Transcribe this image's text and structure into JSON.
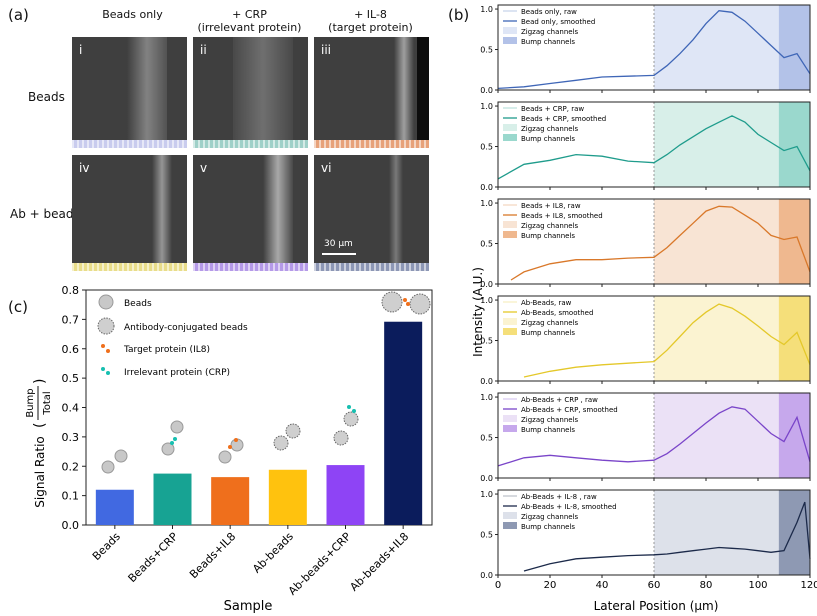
{
  "figure": {
    "panel_a": {
      "letter": "(a)",
      "column_headers": [
        {
          "line1": "Beads only",
          "line2": ""
        },
        {
          "line1": "+ CRP",
          "line2": "(irrelevant protein)"
        },
        {
          "line1": "+ IL-8",
          "line2": "(target protein)"
        }
      ],
      "row_headers": [
        "Beads",
        "Ab + beads"
      ],
      "images": [
        {
          "label": "i",
          "channel_color": "#c9ccee"
        },
        {
          "label": "ii",
          "channel_color": "#9fd0c8"
        },
        {
          "label": "iii",
          "channel_color": "#e7a27a"
        },
        {
          "label": "iv",
          "channel_color": "#e9dd8a"
        },
        {
          "label": "v",
          "channel_color": "#b59ae8"
        },
        {
          "label": "vi",
          "channel_color": "#8d97b5"
        }
      ],
      "scale_bar": "30 μm"
    },
    "panel_b": {
      "letter": "(b)",
      "ylabel": "Intensity (A.U.)",
      "xlabel": "Lateral Position (μm)"
    },
    "panel_c": {
      "letter": "(c)",
      "ylabel_prefix": "Signal Ratio",
      "ratio_numerator": "Bump",
      "ratio_denominator": "Total",
      "xlabel": "Sample",
      "legend": [
        "Beads",
        "Antibody-conjugated beads",
        "Target protein (IL8)",
        "Irrelevant protein (CRP)"
      ]
    }
  },
  "chart_data": [
    {
      "id": "signal-ratio",
      "type": "bar",
      "title": "",
      "xlabel": "Sample",
      "ylabel": "Signal Ratio (Bump/Total)",
      "categories": [
        "Beads",
        "Beads+CRP",
        "Beads+IL8",
        "Ab-beads",
        "Ab-beads+CRP",
        "Ab-beads+IL8"
      ],
      "values": [
        0.12,
        0.175,
        0.163,
        0.188,
        0.204,
        0.692
      ],
      "colors": [
        "#4169e1",
        "#17a393",
        "#ef6f1c",
        "#ffc20e",
        "#8e44f5",
        "#0b1c5c"
      ],
      "ylim": [
        0.0,
        0.8
      ],
      "yticks": [
        "0.0",
        "0.1",
        "0.2",
        "0.3",
        "0.4",
        "0.5",
        "0.6",
        "0.7",
        "0.8"
      ]
    },
    {
      "id": "intensity-profiles",
      "type": "line",
      "xlabel": "Lateral Position (μm)",
      "ylabel": "Intensity (A.U.)",
      "xlim": [
        0,
        120
      ],
      "ylim": [
        0,
        1.05
      ],
      "xticks": [
        "0",
        "20",
        "40",
        "60",
        "80",
        "100",
        "120"
      ],
      "yticks": [
        "0.0",
        "0.5",
        "1.0"
      ],
      "zigzag_range": [
        60,
        108
      ],
      "bump_range": [
        108,
        120
      ],
      "divider_x": 60,
      "series": [
        {
          "name": "Beads only",
          "color": "#3f66b7",
          "zig_fill": "#dfe6f6",
          "bump_fill": "#b3c2e8",
          "legend": [
            "Beads only, raw",
            "Bead only, smoothed",
            "Zigzag channels",
            "Bump channels"
          ],
          "x": [
            0,
            10,
            20,
            30,
            40,
            50,
            60,
            65,
            70,
            75,
            80,
            85,
            90,
            95,
            100,
            105,
            110,
            115,
            120
          ],
          "y": [
            0.02,
            0.04,
            0.08,
            0.12,
            0.16,
            0.17,
            0.18,
            0.3,
            0.45,
            0.62,
            0.82,
            0.98,
            0.96,
            0.85,
            0.7,
            0.55,
            0.4,
            0.45,
            0.2
          ]
        },
        {
          "name": "Beads + CRP",
          "color": "#1f9c8c",
          "zig_fill": "#d8efe9",
          "bump_fill": "#9ad8cd",
          "legend": [
            "Beads + CRP, raw",
            "Beads + CRP, smoothed",
            "Zigzag channels",
            "Bump channels"
          ],
          "x": [
            0,
            10,
            20,
            30,
            40,
            50,
            60,
            65,
            70,
            75,
            80,
            85,
            90,
            95,
            100,
            105,
            110,
            115,
            120
          ],
          "y": [
            0.1,
            0.28,
            0.33,
            0.4,
            0.38,
            0.32,
            0.3,
            0.4,
            0.52,
            0.62,
            0.72,
            0.8,
            0.88,
            0.8,
            0.65,
            0.55,
            0.45,
            0.5,
            0.2
          ]
        },
        {
          "name": "Beads + IL8",
          "color": "#d9782a",
          "zig_fill": "#f8e4d4",
          "bump_fill": "#efb88f",
          "legend": [
            "Beads + IL8, raw",
            "Beads + IL8, smoothed",
            "Zigzag channels",
            "Bump channels"
          ],
          "x": [
            5,
            10,
            20,
            30,
            40,
            50,
            60,
            65,
            70,
            75,
            80,
            85,
            90,
            95,
            100,
            105,
            110,
            115,
            120
          ],
          "y": [
            0.05,
            0.15,
            0.25,
            0.3,
            0.3,
            0.32,
            0.33,
            0.45,
            0.6,
            0.75,
            0.9,
            0.96,
            0.95,
            0.85,
            0.75,
            0.6,
            0.55,
            0.58,
            0.15
          ]
        },
        {
          "name": "Ab-Beads",
          "color": "#e4c82a",
          "zig_fill": "#fbf3d1",
          "bump_fill": "#f5df7a",
          "legend": [
            "Ab-Beads, raw",
            "Ab-Beads, smoothed",
            "Zigzag channels",
            "Bump channels"
          ],
          "x": [
            10,
            20,
            30,
            40,
            50,
            60,
            65,
            70,
            75,
            80,
            85,
            90,
            95,
            100,
            105,
            110,
            115,
            120
          ],
          "y": [
            0.05,
            0.12,
            0.17,
            0.2,
            0.22,
            0.24,
            0.38,
            0.55,
            0.72,
            0.85,
            0.95,
            0.9,
            0.8,
            0.68,
            0.55,
            0.45,
            0.6,
            0.2
          ]
        },
        {
          "name": "Ab-Beads + CRP",
          "color": "#7a45c9",
          "zig_fill": "#ebe1f6",
          "bump_fill": "#c6a8ec",
          "legend": [
            "Ab-Beads + CRP , raw",
            "Ab-Beads + CRP, smoothed",
            "Zigzag channels",
            "Bump channels"
          ],
          "x": [
            0,
            10,
            20,
            30,
            40,
            50,
            60,
            65,
            70,
            75,
            80,
            85,
            90,
            95,
            100,
            105,
            110,
            115,
            120
          ],
          "y": [
            0.15,
            0.25,
            0.28,
            0.25,
            0.22,
            0.2,
            0.22,
            0.3,
            0.42,
            0.55,
            0.68,
            0.8,
            0.88,
            0.85,
            0.7,
            0.55,
            0.45,
            0.75,
            0.2
          ]
        },
        {
          "name": "Ab-Beads + IL-8",
          "color": "#1c2a4a",
          "zig_fill": "#dde1ea",
          "bump_fill": "#8e99b3",
          "legend": [
            "Ab-Beads + IL-8 , raw",
            "Ab-Beads + IL-8, smoothed",
            "Zigzag channels",
            "Bump channels"
          ],
          "x": [
            10,
            20,
            30,
            40,
            50,
            60,
            65,
            70,
            75,
            80,
            85,
            90,
            95,
            100,
            105,
            110,
            115,
            118,
            120
          ],
          "y": [
            0.05,
            0.14,
            0.2,
            0.22,
            0.24,
            0.25,
            0.26,
            0.28,
            0.3,
            0.32,
            0.34,
            0.33,
            0.32,
            0.3,
            0.28,
            0.3,
            0.65,
            0.9,
            0.2
          ]
        }
      ]
    }
  ]
}
